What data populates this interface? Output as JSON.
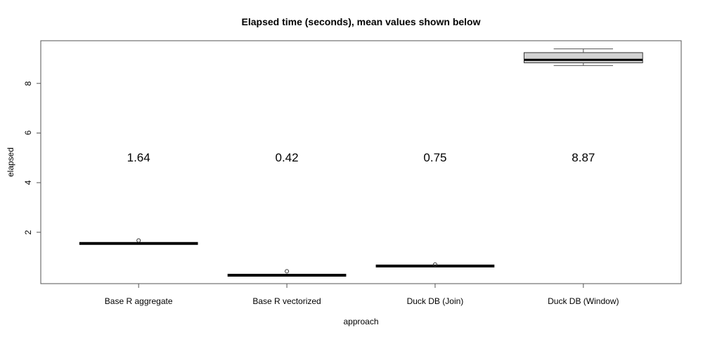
{
  "chart_data": {
    "type": "boxplot",
    "title": "Elapsed time (seconds), mean values shown below",
    "xlabel": "approach",
    "ylabel": "elapsed",
    "categories": [
      "Base R aggregate",
      "Base R vectorized",
      "Duck DB (Join)",
      "Duck DB (Window)"
    ],
    "y_ticks": [
      2,
      4,
      6,
      8
    ],
    "ylim": [
      -0.07,
      9.72
    ],
    "xlim": [
      0.34,
      4.66
    ],
    "grid": false,
    "legend": null,
    "box_width": 0.8,
    "cap_width": 0.4,
    "mean_label_y": 5,
    "boxes": [
      {
        "category": "Base R aggregate",
        "position": 1,
        "lower_whisker": 1.55,
        "q1": 1.55,
        "median": 1.55,
        "q3": 1.55,
        "upper_whisker": 1.55,
        "outliers": [
          1.67
        ],
        "mean": 1.64,
        "mean_label": "1.64"
      },
      {
        "category": "Base R vectorized",
        "position": 2,
        "lower_whisker": 0.27,
        "q1": 0.27,
        "median": 0.27,
        "q3": 0.27,
        "upper_whisker": 0.27,
        "outliers": [
          0.43
        ],
        "mean": 0.42,
        "mean_label": "0.42"
      },
      {
        "category": "Duck DB (Join)",
        "position": 3,
        "lower_whisker": 0.64,
        "q1": 0.64,
        "median": 0.64,
        "q3": 0.64,
        "upper_whisker": 0.64,
        "outliers": [
          0.7
        ],
        "mean": 0.75,
        "mean_label": "0.75"
      },
      {
        "category": "Duck DB (Window)",
        "position": 4,
        "lower_whisker": 8.72,
        "q1": 8.83,
        "median": 8.95,
        "q3": 9.24,
        "upper_whisker": 9.39,
        "outliers": [],
        "mean": 8.87,
        "mean_label": "8.87"
      }
    ],
    "colors": {
      "background": "#ffffff",
      "box_fill": "#d3d3d3",
      "box_stroke": "#333333",
      "median": "#000000",
      "whisker": "#555555",
      "axis": "#555555",
      "text": "#000000"
    }
  }
}
